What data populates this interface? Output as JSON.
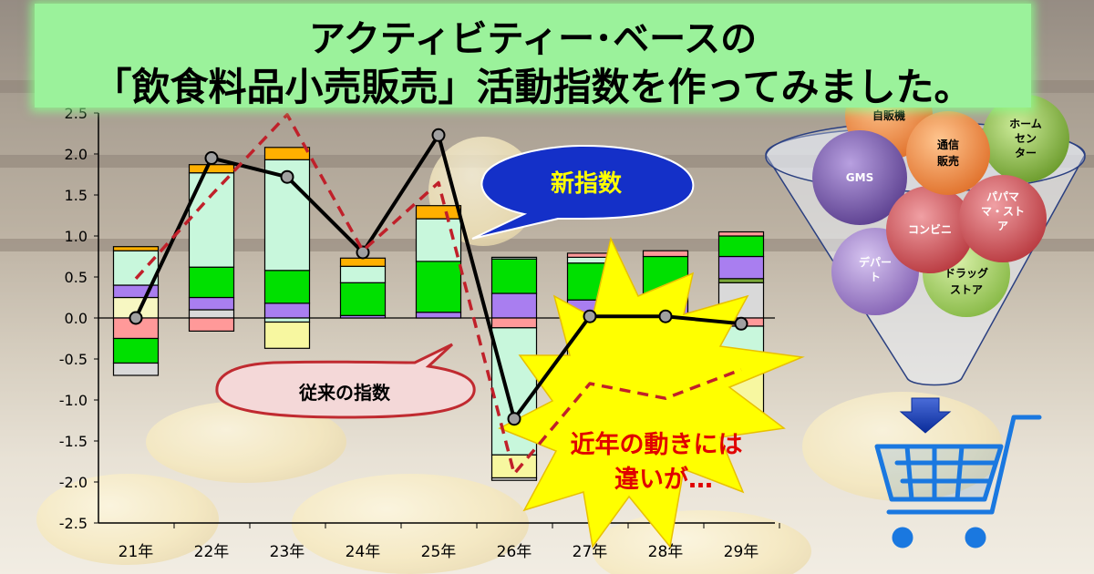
{
  "title": {
    "line1": "アクティビティー･ベースの",
    "line2": "「飲食料品小売販売」活動指数を作ってみました。"
  },
  "callouts": {
    "new_index": "新指数",
    "old_index": "従来の指数",
    "burst_line1": "近年の動きには",
    "burst_line2": "違いが…"
  },
  "channels": [
    {
      "label": "自販機",
      "color": "#f08a3c"
    },
    {
      "label": "通信販売",
      "color": "#f08a3c"
    },
    {
      "label": "ホームセンター",
      "color": "#7aa93a"
    },
    {
      "label": "GMS",
      "color": "#6a4f9a"
    },
    {
      "label": "パパママ・ストア",
      "color": "#c0474d"
    },
    {
      "label": "コンビニ",
      "color": "#c0474d"
    },
    {
      "label": "デパート",
      "color": "#8a6ab5"
    },
    {
      "label": "ドラッグストア",
      "color": "#8ac04a"
    }
  ],
  "chart_data": {
    "type": "bar",
    "title": "",
    "xlabel": "",
    "ylabel": "",
    "ylim": [
      -2.5,
      2.5
    ],
    "yticks": [
      "2.5",
      "2.0",
      "1.5",
      "1.0",
      "0.5",
      "0.0",
      "-0.5",
      "-1.0",
      "-1.5",
      "-2.0",
      "-2.5"
    ],
    "categories": [
      "21年",
      "22年",
      "23年",
      "24年",
      "25年",
      "26年",
      "27年",
      "28年",
      "29年"
    ],
    "series": [
      {
        "color": "#f7f7c2",
        "values": [
          0.25,
          0.0,
          0.0,
          0.0,
          0.0,
          0.0,
          0.0,
          0.0,
          0.0
        ]
      },
      {
        "color": "#d9d9d9",
        "values": [
          0.0,
          0.1,
          0.0,
          0.0,
          0.0,
          0.0,
          0.0,
          0.0,
          0.43
        ]
      },
      {
        "color": "#7aa93a",
        "values": [
          0.0,
          0.0,
          0.0,
          0.0,
          0.0,
          0.0,
          0.0,
          0.0,
          0.05
        ]
      },
      {
        "color": "#a97ef0",
        "values": [
          0.15,
          0.15,
          0.18,
          0.03,
          0.07,
          0.3,
          0.22,
          0.3,
          0.27
        ]
      },
      {
        "color": "#00e000",
        "values": [
          0.0,
          0.37,
          0.4,
          0.4,
          0.62,
          0.42,
          0.45,
          0.45,
          0.25
        ]
      },
      {
        "color": "#c8f7dc",
        "values": [
          0.42,
          1.15,
          1.35,
          0.2,
          0.52,
          0.02,
          0.07,
          0.0,
          0.0
        ]
      },
      {
        "color": "#ff9999",
        "values": [
          0.0,
          0.0,
          0.0,
          0.0,
          0.0,
          0.0,
          0.05,
          0.07,
          0.05
        ]
      },
      {
        "color": "#ffb000",
        "values": [
          0.05,
          0.1,
          0.15,
          0.1,
          0.16,
          0.0,
          0.0,
          0.0,
          0.0
        ]
      },
      {
        "color": "#ff9999",
        "values": [
          -0.25,
          -0.16,
          0.0,
          0.0,
          0.0,
          -0.12,
          -0.12,
          -0.1,
          -0.1
        ]
      },
      {
        "color": "#00e000",
        "values": [
          -0.3,
          0.0,
          0.0,
          0.0,
          0.0,
          0.0,
          0.0,
          0.0,
          0.0
        ]
      },
      {
        "color": "#c8f7dc",
        "values": [
          0.0,
          0.0,
          -0.05,
          0.0,
          0.0,
          -1.55,
          -0.55,
          -0.55,
          -0.5
        ]
      },
      {
        "color": "#1f4fbf",
        "values": [
          0.0,
          0.0,
          0.0,
          0.0,
          0.0,
          0.0,
          -0.05,
          0.0,
          0.0
        ]
      },
      {
        "color": "#f7f7a0",
        "values": [
          0.0,
          0.0,
          -0.32,
          0.0,
          0.0,
          -0.28,
          -0.12,
          -0.25,
          -0.55
        ]
      },
      {
        "color": "#d9d9d9",
        "values": [
          -0.15,
          0.0,
          0.0,
          0.0,
          0.0,
          -0.03,
          0.0,
          0.0,
          0.0
        ]
      }
    ],
    "lines": [
      {
        "name": "新指数",
        "color": "#000000",
        "style": "solid",
        "markers": true,
        "values": [
          0.0,
          1.95,
          1.72,
          0.8,
          2.23,
          -1.23,
          0.02,
          0.02,
          -0.07
        ]
      },
      {
        "name": "従来の指数",
        "color": "#c0202a",
        "style": "dashed",
        "markers": false,
        "values": [
          0.48,
          1.5,
          2.48,
          0.82,
          1.65,
          -1.9,
          -0.8,
          -0.98,
          -0.63
        ]
      }
    ]
  }
}
